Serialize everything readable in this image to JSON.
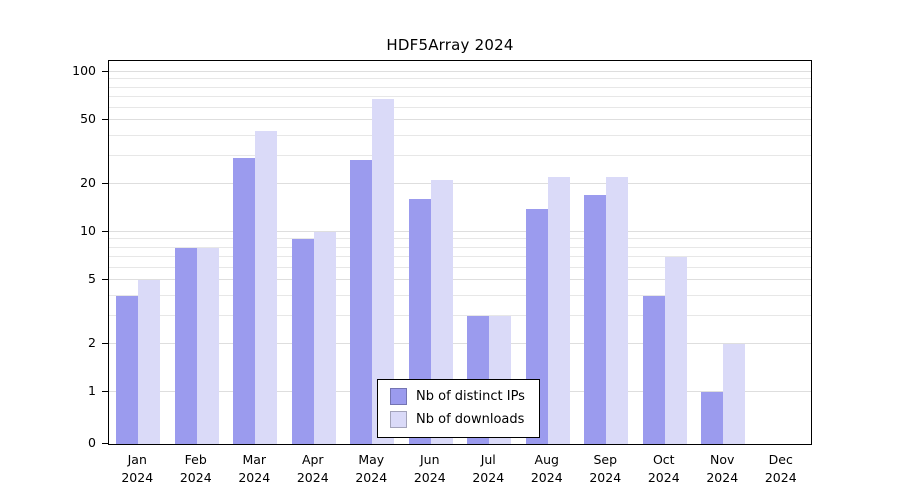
{
  "chart_data": {
    "type": "bar",
    "title": "HDF5Array 2024",
    "categories": [
      "Jan 2024",
      "Feb 2024",
      "Mar 2024",
      "Apr 2024",
      "May 2024",
      "Jun 2024",
      "Jul 2024",
      "Aug 2024",
      "Sep 2024",
      "Oct 2024",
      "Nov 2024",
      "Dec 2024"
    ],
    "months": [
      "Jan",
      "Feb",
      "Mar",
      "Apr",
      "May",
      "Jun",
      "Jul",
      "Aug",
      "Sep",
      "Oct",
      "Nov",
      "Dec"
    ],
    "year": "2024",
    "series": [
      {
        "name": "Nb of distinct IPs",
        "color": "#9b9bee",
        "values": [
          4,
          8,
          29,
          9,
          28,
          16,
          3,
          14,
          17,
          4,
          1,
          0
        ]
      },
      {
        "name": "Nb of downloads",
        "color": "#dadaf8",
        "values": [
          5,
          8,
          43,
          10,
          68,
          21,
          3,
          22,
          22,
          7,
          2,
          0
        ]
      }
    ],
    "yscale": "log",
    "ylim": [
      0,
      100
    ],
    "yticks": [
      0,
      1,
      2,
      5,
      10,
      20,
      50,
      100
    ],
    "gridlines": [
      1,
      2,
      3,
      4,
      5,
      6,
      7,
      8,
      9,
      10,
      20,
      30,
      40,
      50,
      60,
      70,
      80,
      90,
      100
    ],
    "grid": true,
    "legend_position": "bottom-center-inside"
  },
  "colors": {
    "distinct_ips": "#9b9bee",
    "downloads": "#dadaf8",
    "grid": "#e7e7e7",
    "axis": "#000000",
    "background": "#ffffff"
  }
}
